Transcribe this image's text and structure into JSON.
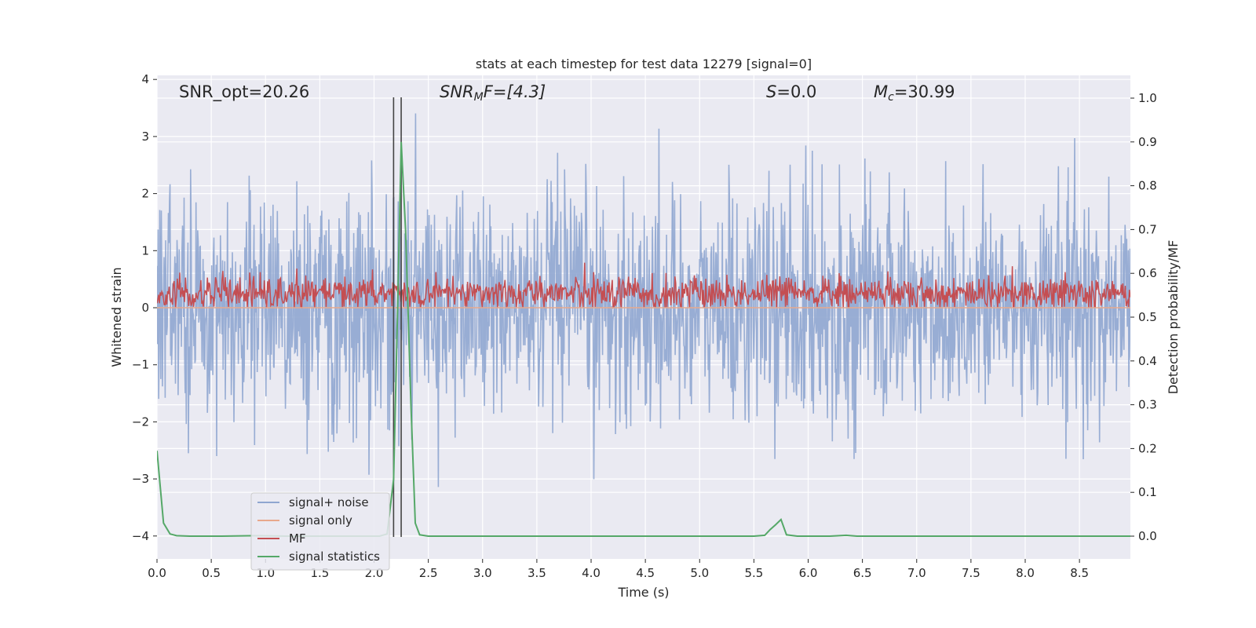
{
  "chart_data": {
    "type": "line",
    "title": "stats at each timestep for test data 12279 [signal=0]",
    "xlabel": "Time (s)",
    "ylabel_left": "Whitened strain",
    "ylabel_right": "Detection probability/MF",
    "xlim": [
      0,
      8.99
    ],
    "ylim_left": [
      -4.18,
      4.05
    ],
    "ylim_right": [
      -0.047,
      1.043
    ],
    "x_ticks": [
      "0.0",
      "0.5",
      "1.0",
      "1.5",
      "2.0",
      "2.5",
      "3.0",
      "3.5",
      "4.0",
      "4.5",
      "5.0",
      "5.5",
      "6.0",
      "6.5",
      "7.0",
      "7.5",
      "8.0",
      "8.5"
    ],
    "y_left_ticks": [
      "4",
      "3",
      "2",
      "1",
      "0",
      "−1",
      "−2",
      "−3",
      "−4"
    ],
    "y_right_ticks": [
      "1.0",
      "0.9",
      "0.8",
      "0.7",
      "0.6",
      "0.5",
      "0.4",
      "0.3",
      "0.2",
      "0.1",
      "0.0"
    ],
    "grid": true,
    "legend_position": "lower-left",
    "annotations": {
      "snr_opt": "SNR_opt=20.26",
      "snr_mf_base": "SNR",
      "snr_mf_sub": "M",
      "snr_mf_rest": "F=[4.3]",
      "s_italic": "S",
      "s_rest": "=0.0",
      "mc_base": "M",
      "mc_sub": "c",
      "mc_rest": "=30.99"
    },
    "vertical_markers": [
      2.18,
      2.25
    ],
    "series": [
      {
        "name": "signal+ noise",
        "color": "#8fa6d0",
        "axis": "left",
        "description_values": "noise, roughly uniform amplitude about ±2.5, peaks to ±3.6"
      },
      {
        "name": "signal only",
        "color": "#e8a88c",
        "axis": "left",
        "values_constant": 0.0
      },
      {
        "name": "MF",
        "color": "#c44e52",
        "axis": "left",
        "mean": 0.25,
        "range": [
          0.0,
          1.0
        ]
      },
      {
        "name": "signal statistics",
        "color": "#55a868",
        "axis": "right",
        "x": [
          0.0,
          0.06,
          0.12,
          0.18,
          0.3,
          0.6,
          0.9,
          1.2,
          1.5,
          1.8,
          2.05,
          2.12,
          2.18,
          2.22,
          2.25,
          2.29,
          2.34,
          2.38,
          2.42,
          2.5,
          3.0,
          3.5,
          4.0,
          4.5,
          5.0,
          5.5,
          5.6,
          5.65,
          5.7,
          5.75,
          5.8,
          5.9,
          6.0,
          6.2,
          6.35,
          6.45,
          7.0,
          7.5,
          8.0,
          8.5,
          8.99
        ],
        "y": [
          0.195,
          0.03,
          0.005,
          0.001,
          0.0,
          0.0,
          0.001,
          0.0,
          0.0,
          0.0,
          0.0,
          0.005,
          0.13,
          0.55,
          0.9,
          0.7,
          0.3,
          0.03,
          0.003,
          0.0,
          0.0,
          0.0,
          0.0,
          0.0,
          0.0,
          0.0,
          0.002,
          0.015,
          0.026,
          0.038,
          0.003,
          0.0,
          0.0,
          0.0,
          0.002,
          0.0,
          0.0,
          0.0,
          0.0,
          0.0,
          0.0
        ]
      }
    ]
  }
}
